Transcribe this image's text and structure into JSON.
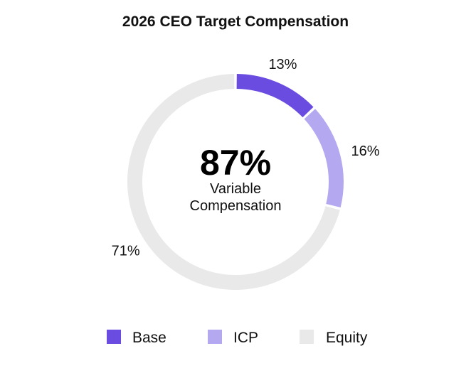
{
  "chart_data": {
    "type": "pie",
    "title": "2026 CEO Target Compensation",
    "donut": true,
    "categories": [
      "Base",
      "ICP",
      "Equity"
    ],
    "values": [
      13,
      16,
      71
    ],
    "labels": [
      "13%",
      "16%",
      "71%"
    ],
    "colors": [
      "#6a4ce0",
      "#b4a9f0",
      "#e9e9e9"
    ],
    "center": {
      "value": "87%",
      "line1": "Variable",
      "line2": "Compensation"
    },
    "legend": {
      "placement": "bottom",
      "items": [
        {
          "name": "Base",
          "color": "#6a4ce0"
        },
        {
          "name": "ICP",
          "color": "#b4a9f0"
        },
        {
          "name": "Equity",
          "color": "#e9e9e9"
        }
      ]
    }
  }
}
